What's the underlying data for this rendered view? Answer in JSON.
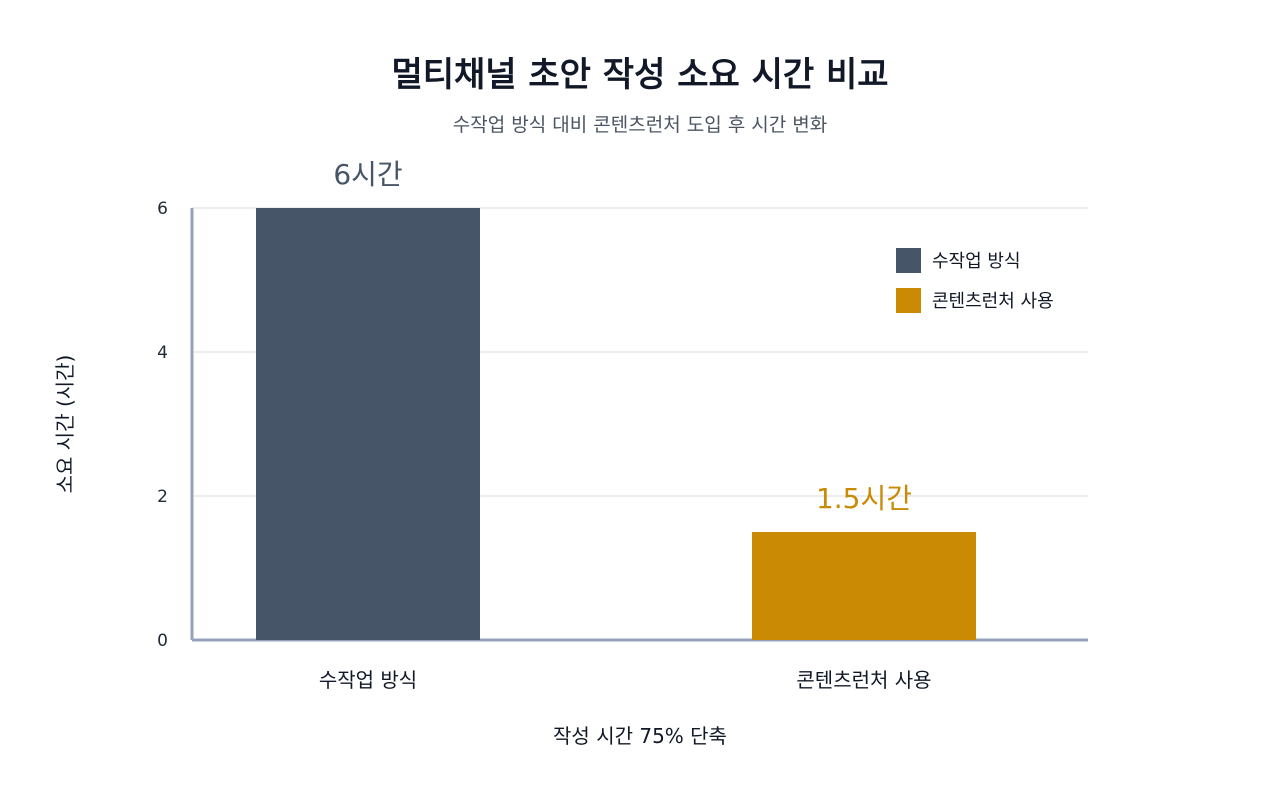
{
  "chart_data": {
    "type": "bar",
    "title": "멀티채널 초안 작성 소요 시간 비교",
    "subtitle": "수작업 방식 대비 콘텐츠런처 도입 후 시간 변화",
    "xlabel": "작성 시간 75% 단축",
    "ylabel": "소요 시간 (시간)",
    "ylim": [
      0,
      6
    ],
    "y_ticks": [
      "0",
      "2",
      "4",
      "6"
    ],
    "categories": [
      "수작업 방식",
      "콘텐츠런처 사용"
    ],
    "values": [
      6,
      1.5
    ],
    "data_labels": [
      "6시간",
      "1.5시간"
    ],
    "colors": [
      "#475569",
      "#ca8a04"
    ],
    "legend": {
      "placement": "top-right",
      "entries": [
        "수작업 방식",
        "콘텐츠런처 사용"
      ]
    },
    "grid": true
  }
}
